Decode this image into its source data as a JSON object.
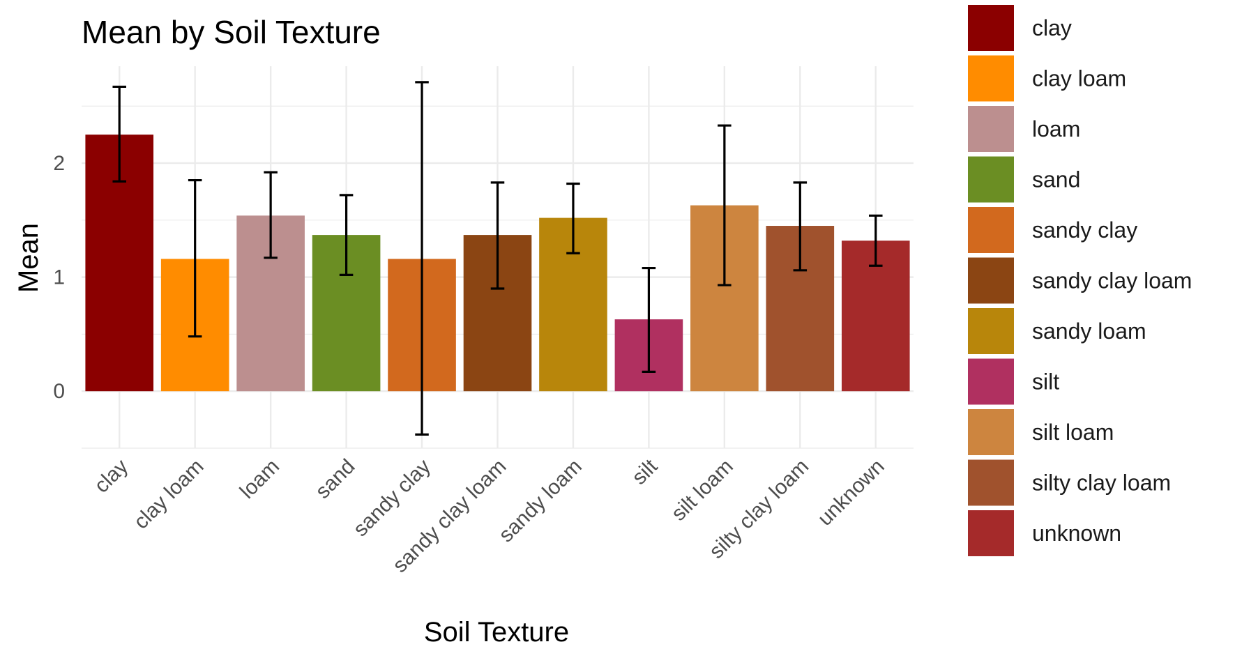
{
  "chart_data": {
    "type": "bar",
    "title": "Mean by Soil Texture",
    "xlabel": "Soil Texture",
    "ylabel": "Mean",
    "categories": [
      "clay",
      "clay loam",
      "loam",
      "sand",
      "sandy clay",
      "sandy clay loam",
      "sandy loam",
      "silt",
      "silt loam",
      "silty clay loam",
      "unknown"
    ],
    "values": [
      2.25,
      1.16,
      1.54,
      1.37,
      1.16,
      1.37,
      1.52,
      0.63,
      1.63,
      1.45,
      1.32
    ],
    "error_low": [
      1.84,
      0.48,
      1.17,
      1.02,
      -0.38,
      0.9,
      1.21,
      0.17,
      0.93,
      1.06,
      1.1
    ],
    "error_high": [
      2.67,
      1.85,
      1.92,
      1.72,
      2.71,
      1.83,
      1.82,
      1.08,
      2.33,
      1.83,
      1.54
    ],
    "colors": [
      "#8B0000",
      "#FF8C00",
      "#BC8F8F",
      "#6B8E23",
      "#D2691E",
      "#8B4513",
      "#B8860B",
      "#B03060",
      "#CD853F",
      "#A0522D",
      "#A52A2A"
    ],
    "y_ticks": [
      "0",
      "1",
      "2"
    ],
    "ylim": [
      -0.5,
      2.85
    ],
    "grid": true,
    "legend_position": "right",
    "legend_entries": [
      "clay",
      "clay loam",
      "loam",
      "sand",
      "sandy clay",
      "sandy clay loam",
      "sandy loam",
      "silt",
      "silt loam",
      "silty clay loam",
      "unknown"
    ]
  }
}
